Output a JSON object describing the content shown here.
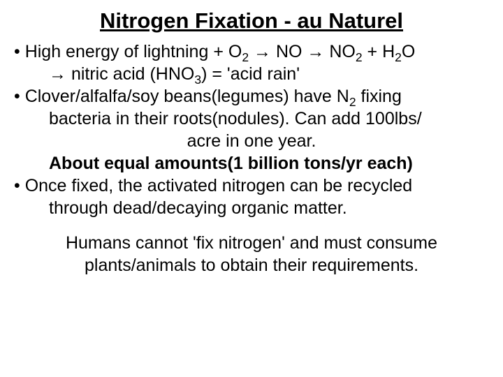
{
  "title": "Nitrogen Fixation - au Naturel",
  "lines": {
    "l1": "• High energy of lightning + O",
    "l1b": " → NO → NO",
    "l1c": " + H",
    "l1d": "O",
    "l2a": "→ nitric acid (HNO",
    "l2b": ") = 'acid rain'",
    "l3": "• Clover/alfalfa/soy beans(legumes) have N",
    "l3b": " fixing",
    "l4": "bacteria in their roots(nodules). Can add 100lbs/",
    "l5": "acre in one year.",
    "l6": "About equal amounts(1 billion tons/yr each)",
    "l7": "• Once fixed, the activated nitrogen can be recycled",
    "l8": "through dead/decaying organic matter.",
    "l9": "Humans cannot 'fix nitrogen' and must consume",
    "l10": "plants/animals to obtain their requirements."
  },
  "sub": {
    "two": "2",
    "three": "3"
  },
  "colors": {
    "bg": "#ffffff",
    "text": "#000000"
  },
  "typography": {
    "title_fontsize": 31,
    "body_fontsize": 25,
    "title_weight": "bold",
    "font_family": "Arial"
  }
}
